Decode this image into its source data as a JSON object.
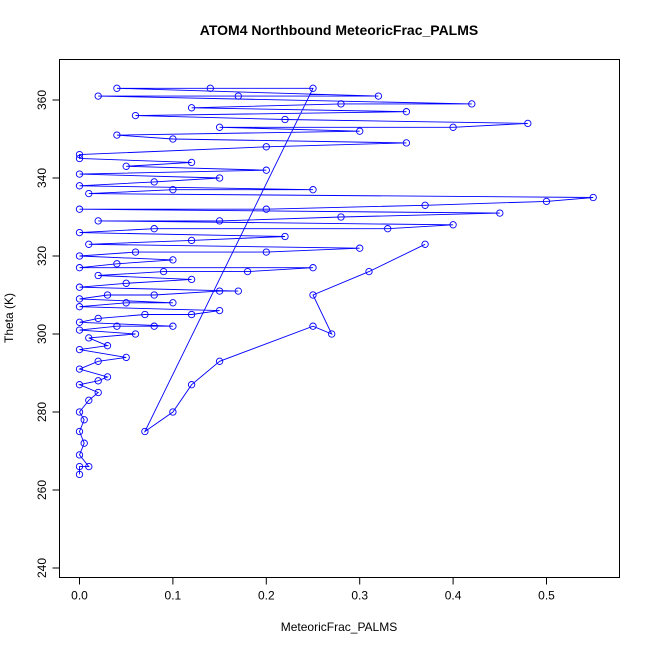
{
  "chart_data": {
    "type": "scatter",
    "title": "ATOM4 Northbound MeteoricFrac_PALMS",
    "xlabel": "MeteoricFrac_PALMS",
    "ylabel": "Theta (K)",
    "xlim": [
      0,
      0.56
    ],
    "ylim": [
      240,
      365
    ],
    "x_ticks": [
      "0.0",
      "0.1",
      "0.2",
      "0.3",
      "0.4",
      "0.5"
    ],
    "y_ticks": [
      "240",
      "260",
      "280",
      "300",
      "320",
      "340",
      "360"
    ],
    "series_color": "#0000ff",
    "point_style": "open-circle-connected",
    "points": [
      [
        0.0,
        264
      ],
      [
        0.0,
        266
      ],
      [
        0.01,
        266
      ],
      [
        0.0,
        269
      ],
      [
        0.005,
        272
      ],
      [
        0.0,
        275
      ],
      [
        0.005,
        278
      ],
      [
        0.0,
        280
      ],
      [
        0.01,
        283
      ],
      [
        0.02,
        285
      ],
      [
        0.0,
        287
      ],
      [
        0.02,
        288
      ],
      [
        0.03,
        289
      ],
      [
        0.0,
        291
      ],
      [
        0.02,
        293
      ],
      [
        0.05,
        294
      ],
      [
        0.0,
        296
      ],
      [
        0.03,
        297
      ],
      [
        0.01,
        299
      ],
      [
        0.06,
        300
      ],
      [
        0.0,
        301
      ],
      [
        0.04,
        302
      ],
      [
        0.08,
        302
      ],
      [
        0.1,
        302
      ],
      [
        0.0,
        303
      ],
      [
        0.02,
        304
      ],
      [
        0.07,
        305
      ],
      [
        0.12,
        305
      ],
      [
        0.15,
        306
      ],
      [
        0.0,
        307
      ],
      [
        0.05,
        308
      ],
      [
        0.1,
        308
      ],
      [
        0.0,
        309
      ],
      [
        0.03,
        310
      ],
      [
        0.08,
        310
      ],
      [
        0.15,
        311
      ],
      [
        0.17,
        311
      ],
      [
        0.0,
        312
      ],
      [
        0.05,
        313
      ],
      [
        0.12,
        314
      ],
      [
        0.02,
        315
      ],
      [
        0.09,
        316
      ],
      [
        0.18,
        316
      ],
      [
        0.25,
        317
      ],
      [
        0.0,
        317
      ],
      [
        0.04,
        318
      ],
      [
        0.1,
        319
      ],
      [
        0.0,
        320
      ],
      [
        0.06,
        321
      ],
      [
        0.2,
        321
      ],
      [
        0.3,
        322
      ],
      [
        0.01,
        323
      ],
      [
        0.12,
        324
      ],
      [
        0.22,
        325
      ],
      [
        0.0,
        326
      ],
      [
        0.08,
        327
      ],
      [
        0.33,
        327
      ],
      [
        0.4,
        328
      ],
      [
        0.02,
        329
      ],
      [
        0.15,
        329
      ],
      [
        0.28,
        330
      ],
      [
        0.45,
        331
      ],
      [
        0.0,
        332
      ],
      [
        0.2,
        332
      ],
      [
        0.37,
        333
      ],
      [
        0.5,
        334
      ],
      [
        0.55,
        335
      ],
      [
        0.01,
        336
      ],
      [
        0.1,
        337
      ],
      [
        0.25,
        337
      ],
      [
        0.0,
        338
      ],
      [
        0.08,
        339
      ],
      [
        0.15,
        340
      ],
      [
        0.0,
        341
      ],
      [
        0.2,
        342
      ],
      [
        0.05,
        343
      ],
      [
        0.12,
        344
      ],
      [
        0.0,
        345
      ],
      [
        0.0,
        346
      ],
      [
        0.2,
        348
      ],
      [
        0.35,
        349
      ],
      [
        0.1,
        350
      ],
      [
        0.04,
        351
      ],
      [
        0.3,
        352
      ],
      [
        0.15,
        353
      ],
      [
        0.4,
        353
      ],
      [
        0.48,
        354
      ],
      [
        0.22,
        355
      ],
      [
        0.06,
        356
      ],
      [
        0.35,
        357
      ],
      [
        0.12,
        358
      ],
      [
        0.28,
        359
      ],
      [
        0.42,
        359
      ],
      [
        0.02,
        361
      ],
      [
        0.17,
        361
      ],
      [
        0.32,
        361
      ],
      [
        0.04,
        363
      ],
      [
        0.14,
        363
      ],
      [
        0.25,
        363
      ],
      [
        0.07,
        275
      ],
      [
        0.1,
        280
      ],
      [
        0.12,
        287
      ],
      [
        0.15,
        293
      ],
      [
        0.25,
        302
      ],
      [
        0.27,
        300
      ],
      [
        0.25,
        310
      ],
      [
        0.31,
        316
      ],
      [
        0.37,
        323
      ]
    ]
  }
}
